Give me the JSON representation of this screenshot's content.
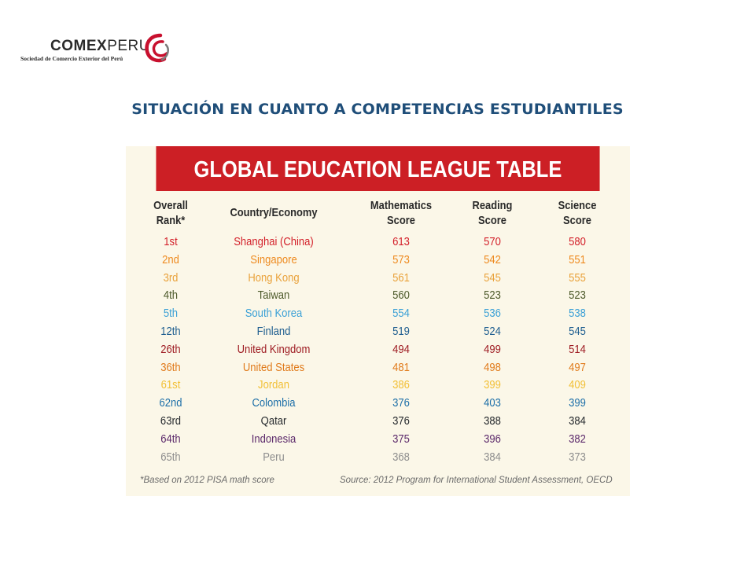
{
  "logo": {
    "word_bold": "COMEX",
    "word_regular": "PERU",
    "subtitle": "Sociedad de Comercio Exterior del Perú",
    "mark_colors": [
      "#c8102e",
      "#7a7a7a"
    ]
  },
  "slide_title": "SITUACIÓN EN CUANTO A COMPETENCIAS ESTUDIANTILES",
  "league_table": {
    "title": "GLOBAL EDUCATION LEAGUE TABLE",
    "banner_color": "#cc1f25",
    "headers": {
      "rank": [
        "Overall",
        "Rank*"
      ],
      "country": "Country/Economy",
      "math": [
        "Mathematics",
        "Score"
      ],
      "reading": [
        "Reading",
        "Score"
      ],
      "science": [
        "Science",
        "Score"
      ]
    },
    "rows": [
      {
        "rank": "1st",
        "country": "Shanghai (China)",
        "math": "613",
        "reading": "570",
        "science": "580",
        "color": "#d3202a"
      },
      {
        "rank": "2nd",
        "country": "Singapore",
        "math": "573",
        "reading": "542",
        "science": "551",
        "color": "#ee8a1f"
      },
      {
        "rank": "3rd",
        "country": "Hong Kong",
        "math": "561",
        "reading": "545",
        "science": "555",
        "color": "#e9a23b"
      },
      {
        "rank": "4th",
        "country": "Taiwan",
        "math": "560",
        "reading": "523",
        "science": "523",
        "color": "#4d5a2a"
      },
      {
        "rank": "5th",
        "country": "South Korea",
        "math": "554",
        "reading": "536",
        "science": "538",
        "color": "#3aa0d6"
      },
      {
        "rank": "12th",
        "country": "Finland",
        "math": "519",
        "reading": "524",
        "science": "545",
        "color": "#1d5d8f"
      },
      {
        "rank": "26th",
        "country": "United Kingdom",
        "math": "494",
        "reading": "499",
        "science": "514",
        "color": "#9e1b22"
      },
      {
        "rank": "36th",
        "country": "United States",
        "math": "481",
        "reading": "498",
        "science": "497",
        "color": "#e07a1a"
      },
      {
        "rank": "61st",
        "country": "Jordan",
        "math": "386",
        "reading": "399",
        "science": "409",
        "color": "#f2c037"
      },
      {
        "rank": "62nd",
        "country": "Colombia",
        "math": "376",
        "reading": "403",
        "science": "399",
        "color": "#1d6fa8"
      },
      {
        "rank": "63rd",
        "country": "Qatar",
        "math": "376",
        "reading": "388",
        "science": "384",
        "color": "#262a2e"
      },
      {
        "rank": "64th",
        "country": "Indonesia",
        "math": "375",
        "reading": "396",
        "science": "382",
        "color": "#5c2a6b"
      },
      {
        "rank": "65th",
        "country": "Peru",
        "math": "368",
        "reading": "384",
        "science": "373",
        "color": "#8e8e8e"
      }
    ],
    "footnote_left": "*Based on 2012 PISA math score",
    "footnote_right": "Source: 2012 Program for International Student Assessment, OECD"
  }
}
